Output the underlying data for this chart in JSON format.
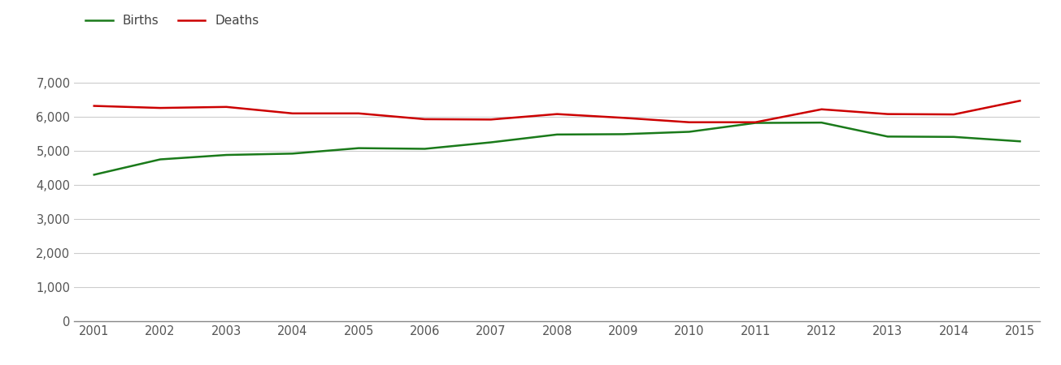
{
  "years": [
    2001,
    2002,
    2003,
    2004,
    2005,
    2006,
    2007,
    2008,
    2009,
    2010,
    2011,
    2012,
    2013,
    2014,
    2015
  ],
  "births": [
    4300,
    4750,
    4880,
    4920,
    5080,
    5060,
    5250,
    5480,
    5490,
    5560,
    5820,
    5830,
    5420,
    5410,
    5280
  ],
  "deaths": [
    6320,
    6260,
    6290,
    6100,
    6100,
    5930,
    5920,
    6080,
    5970,
    5840,
    5840,
    6220,
    6080,
    6070,
    6470
  ],
  "births_color": "#1a7a1a",
  "deaths_color": "#cc0000",
  "births_label": "Births",
  "deaths_label": "Deaths",
  "ylim": [
    0,
    7500
  ],
  "yticks": [
    0,
    1000,
    2000,
    3000,
    4000,
    5000,
    6000,
    7000
  ],
  "line_width": 1.8,
  "background_color": "#ffffff",
  "grid_color": "#cccccc",
  "tick_label_color": "#555555",
  "legend_fontsize": 11,
  "tick_fontsize": 10.5
}
